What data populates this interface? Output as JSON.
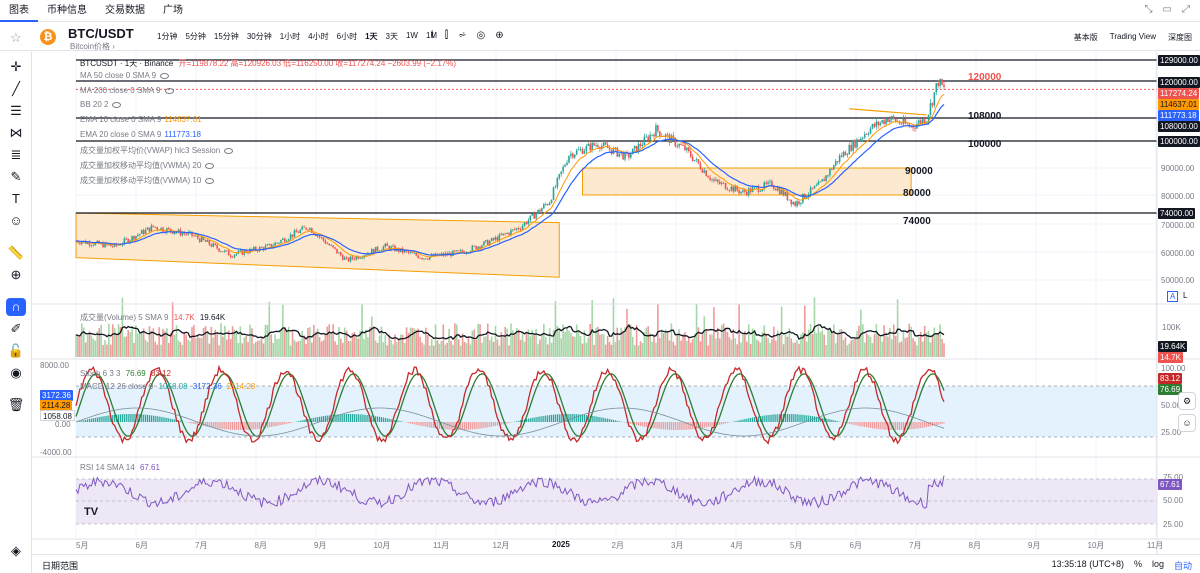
{
  "topbar": {
    "tabs": [
      "图表",
      "币种信息",
      "交易数据",
      "广场"
    ],
    "window_icons": [
      "⤡",
      "▭",
      "⤢"
    ]
  },
  "toolbar": {
    "symbol": "BTC/USDT",
    "symbol_sub": "Bitcoin价格 ›",
    "coin_glyph": "₿",
    "intervals": [
      "1分钟",
      "5分钟",
      "15分钟",
      "30分钟",
      "1小时",
      "4小时",
      "6小时",
      "1天",
      "3天",
      "1W",
      "1M"
    ],
    "active_interval": "1天",
    "tool_icons": [
      "⌇",
      "⫿",
      "⩫",
      "◎",
      "⊕"
    ],
    "right_links": [
      "基本版",
      "Trading View",
      "深度图"
    ]
  },
  "leftbar": {
    "tools": [
      "crosshair-icon",
      "trendline-icon",
      "horizontal-lines-icon",
      "pitchfork-icon",
      "fib-icon",
      "brush-icon",
      "text-icon",
      "emoji-icon",
      "ruler-icon",
      "zoom-in-icon",
      "magnet-icon",
      "lock-draw-icon",
      "lock-icon",
      "eye-icon",
      "trash-icon"
    ],
    "bottom_tool": "layers-icon"
  },
  "main_legend": {
    "title": "BTCUSDT · 1天 · Binance",
    "ohlc": "开=119878.22 高=120926.03 低=116250.00 收=117274.24 −2603.99 (−2.17%)",
    "ma50": "MA 50 close 0 SMA 9",
    "ma200": "MA 200 close 0 SMA 9",
    "bb": "BB 20 2",
    "ema10": "EMA 10 close 0 SMA 9",
    "ema10_value": "114637.01",
    "ema20": "EMA 20 close 0 SMA 9",
    "ema20_value": "111773.18",
    "vwap": "成交量加权平均价(VWAP) hlc3 Session",
    "vwma20": "成交量加权移动平均值(VWMA) 20",
    "vwma10": "成交量加权移动平均值(VWMA) 10"
  },
  "volume_legend": {
    "label": "成交量(Volume) 5 SMA 9",
    "v1": "14.7K",
    "v2": "19.64K"
  },
  "stoch_legend": {
    "label": "Stoch 6 3 3",
    "v1": "76.69",
    "v2": "83.12"
  },
  "macd_legend": {
    "label": "MACD 12 26 close 9",
    "v1": "1058.08",
    "v2": "3172.36",
    "v3": "2114.28"
  },
  "rsi_legend": {
    "label": "RSI 14 SMA 14",
    "v1": "67.61"
  },
  "annotations": [
    "120000",
    "108000",
    "100000",
    "90000",
    "80000",
    "74000"
  ],
  "price_axis": {
    "ticks": [
      "129000.00",
      "90000.00",
      "80000.00",
      "70000.00",
      "60000.00",
      "50000.00"
    ],
    "labels": {
      "p120000": "120000.00",
      "p117274": "117274.24",
      "p114637": "114637.01",
      "p111773": "111773.18",
      "p108000": "108000.00",
      "p100000": "100000.00",
      "p74000": "74000.00"
    },
    "scale_buttons": [
      "A",
      "L"
    ]
  },
  "volume_axis": {
    "tick": "100K",
    "labels": [
      "19.64K",
      "14.7K"
    ]
  },
  "macd_axis": {
    "top": "8000.00",
    "bottom": "-4000.00",
    "labels": [
      "3172.36",
      "2114.28",
      "1058.08"
    ],
    "zero": "0.00"
  },
  "stoch_axis": {
    "ticks": [
      "100.00",
      "75.00",
      "50.00",
      "25.00"
    ],
    "labels": [
      "83.12",
      "76.69"
    ]
  },
  "rsi_axis": {
    "ticks": [
      "75.00",
      "50.00",
      "25.00"
    ],
    "label": "67.61"
  },
  "time_axis": [
    "5月",
    "6月",
    "7月",
    "8月",
    "9月",
    "10月",
    "11月",
    "12月",
    "2025",
    "2月",
    "3月",
    "4月",
    "5月",
    "6月",
    "7月",
    "8月",
    "9月",
    "10月",
    "11月"
  ],
  "bottombar": {
    "left": "日期范围",
    "time": "13:35:18 (UTC+8)",
    "percent": "%",
    "log": "log",
    "auto": "自动"
  },
  "colors": {
    "up": "#26a69a",
    "down": "#ef5350",
    "ema10": "#ff9800",
    "ema20": "#2962ff",
    "channel_fill": "#fde9cf",
    "channel_line": "#f59f00",
    "stoch_k": "#c62828",
    "stoch_d": "#2e7d32",
    "rsi": "#7e57c2",
    "stoch_band": "#e3f2fd"
  }
}
